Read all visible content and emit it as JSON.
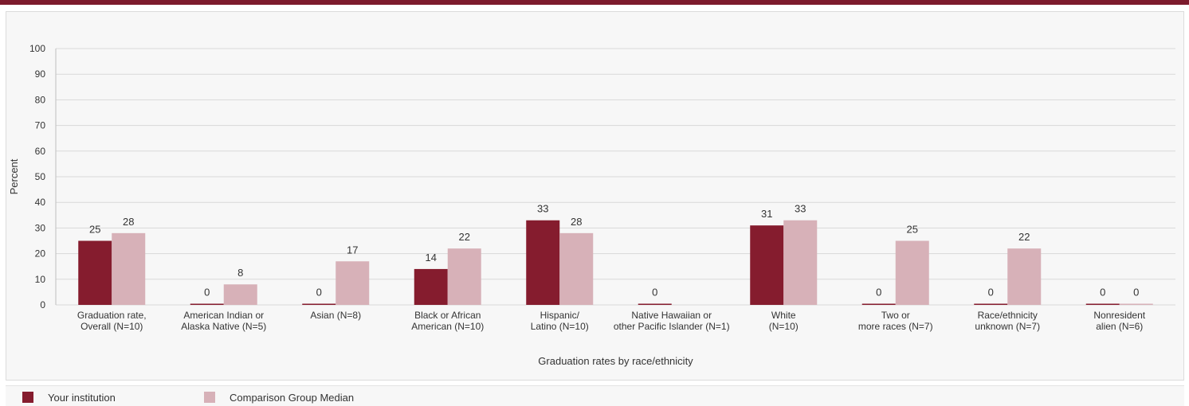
{
  "colors": {
    "top_bar": "#7d1b2d",
    "your_institution": "#851c2e",
    "comparison": "#d7b1b8",
    "grid": "#d9d9d9",
    "axis_text": "#333333"
  },
  "chart_data": {
    "type": "bar",
    "title": "",
    "xlabel": "Graduation rates by race/ethnicity",
    "ylabel": "Percent",
    "ylim": [
      0,
      100
    ],
    "yticks": [
      0,
      10,
      20,
      30,
      40,
      50,
      60,
      70,
      80,
      90,
      100
    ],
    "grid": true,
    "legend_position": "bottom-left",
    "categories": [
      [
        "Graduation rate,",
        "Overall (N=10)"
      ],
      [
        "American Indian or",
        "Alaska Native (N=5)"
      ],
      [
        "Asian (N=8)"
      ],
      [
        "Black or African",
        "American (N=10)"
      ],
      [
        "Hispanic/",
        "Latino (N=10)"
      ],
      [
        "Native Hawaiian or",
        "other Pacific Islander (N=1)"
      ],
      [
        "White",
        "(N=10)"
      ],
      [
        "Two or",
        "more races (N=7)"
      ],
      [
        "Race/ethnicity",
        "unknown (N=7)"
      ],
      [
        "Nonresident",
        "alien (N=6)"
      ]
    ],
    "series": [
      {
        "name": "Your institution",
        "color": "#851c2e",
        "values": [
          25,
          0,
          0,
          14,
          33,
          0,
          31,
          0,
          0,
          0
        ]
      },
      {
        "name": "Comparison Group Median",
        "color": "#d7b1b8",
        "values": [
          28,
          8,
          17,
          22,
          28,
          null,
          33,
          25,
          22,
          0
        ]
      }
    ]
  }
}
